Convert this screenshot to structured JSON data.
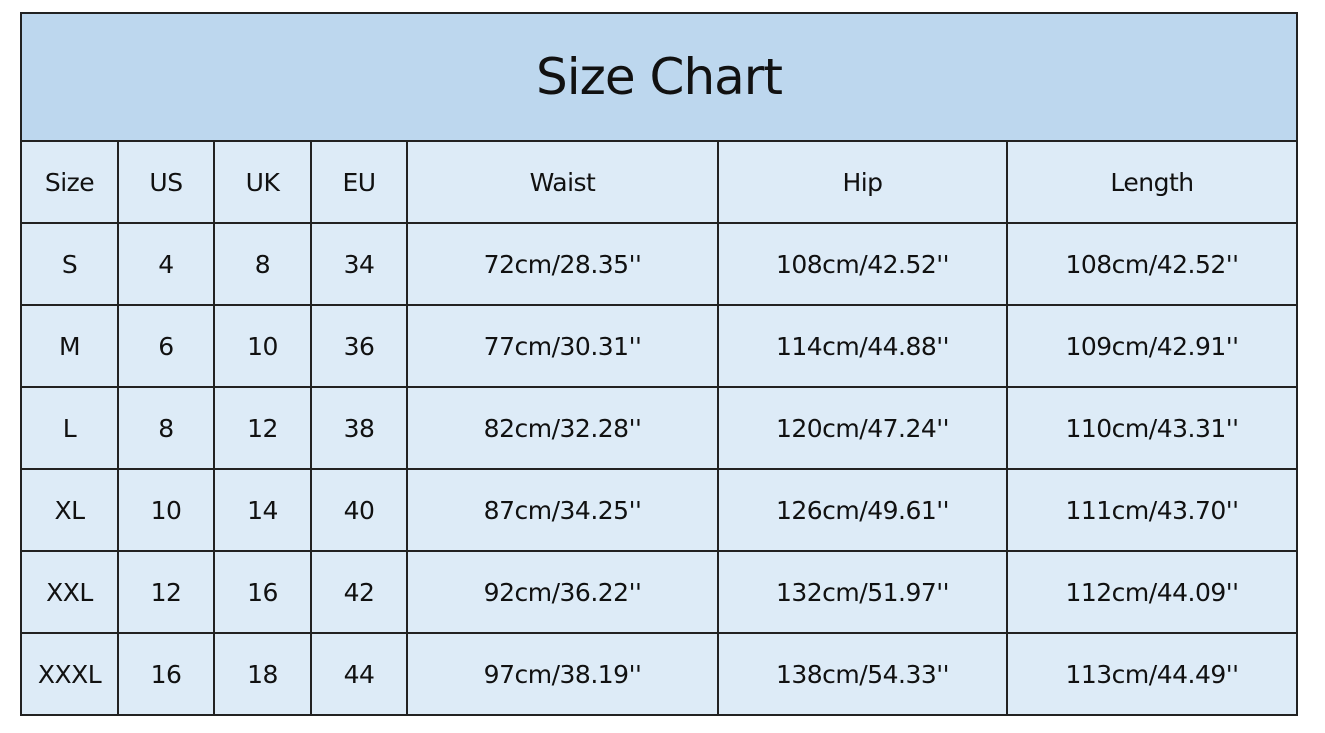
{
  "chart_data": {
    "type": "table",
    "title": "Size Chart",
    "columns": [
      "Size",
      "US",
      "UK",
      "EU",
      "Waist",
      "Hip",
      "Length"
    ],
    "rows": [
      [
        "S",
        "4",
        "8",
        "34",
        "72cm/28.35''",
        "108cm/42.52''",
        "108cm/42.52''"
      ],
      [
        "M",
        "6",
        "10",
        "36",
        "77cm/30.31''",
        "114cm/44.88''",
        "109cm/42.91''"
      ],
      [
        "L",
        "8",
        "12",
        "38",
        "82cm/32.28''",
        "120cm/47.24''",
        "110cm/43.31''"
      ],
      [
        "XL",
        "10",
        "14",
        "40",
        "87cm/34.25''",
        "126cm/49.61''",
        "111cm/43.70''"
      ],
      [
        "XXL",
        "12",
        "16",
        "42",
        "92cm/36.22''",
        "132cm/51.97''",
        "112cm/44.09''"
      ],
      [
        "XXXL",
        "16",
        "18",
        "44",
        "97cm/38.19''",
        "138cm/54.33''",
        "113cm/44.49''"
      ]
    ],
    "colors": {
      "title_bg": "#bdd7ee",
      "cell_bg": "#ddebf7",
      "border": "#222222"
    }
  }
}
